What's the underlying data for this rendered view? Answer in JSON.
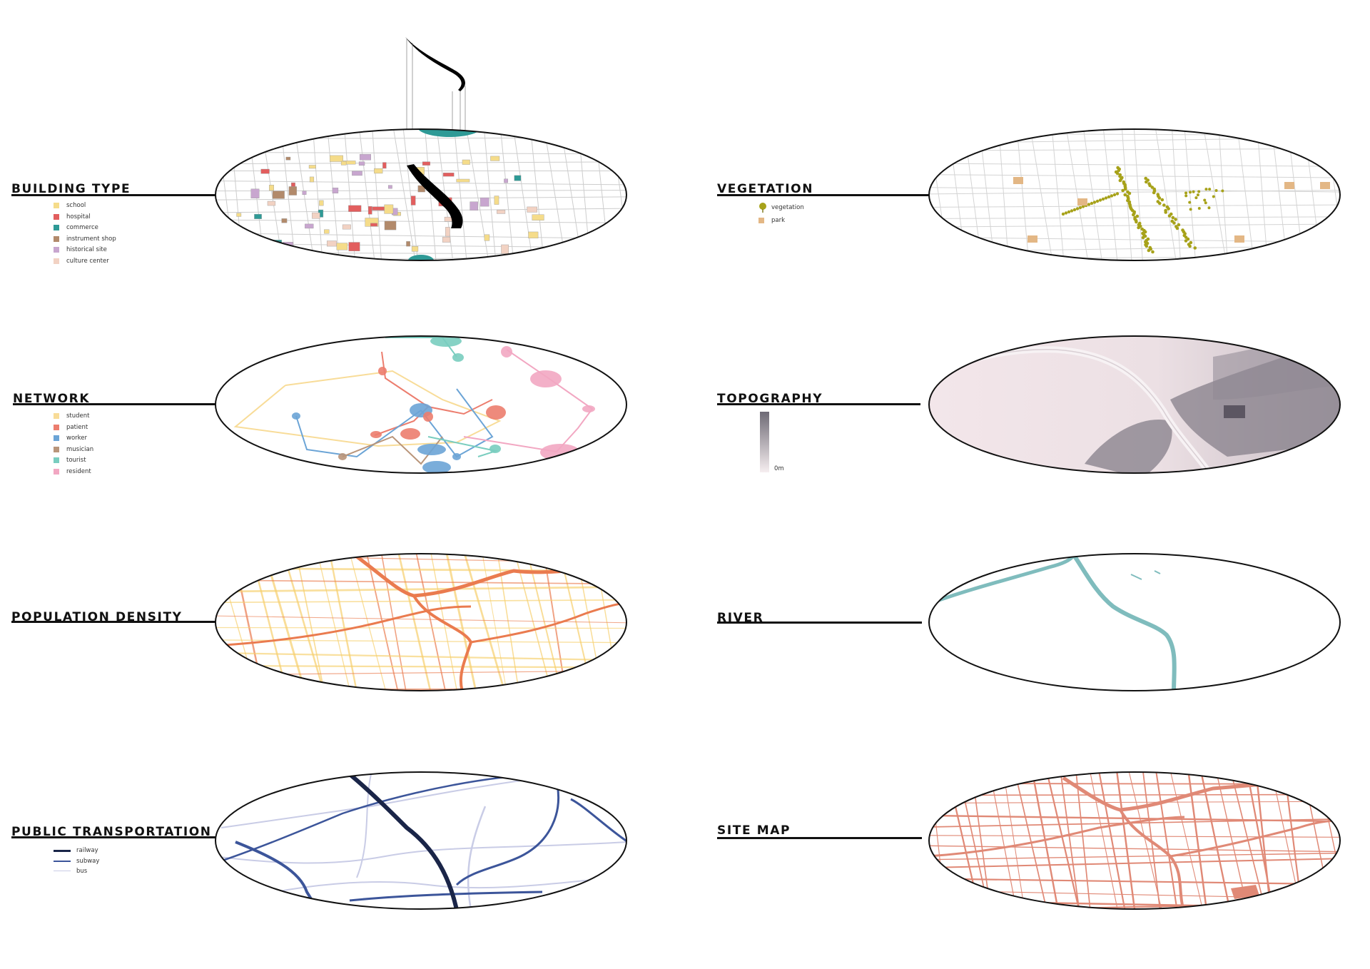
{
  "panels": [
    {
      "key": "building_type",
      "title": "BUILDING TYPE",
      "legend": [
        {
          "label": "school",
          "color": "#f5dc8a"
        },
        {
          "label": "hospital",
          "color": "#e25e5e"
        },
        {
          "label": "commerce",
          "color": "#2e9a96"
        },
        {
          "label": "instrument shop",
          "color": "#b28a6b"
        },
        {
          "label": "historical site",
          "color": "#c8a6cf"
        },
        {
          "label": "culture center",
          "color": "#f2d2c3"
        }
      ]
    },
    {
      "key": "vegetation",
      "title": "VEGETATION",
      "legend": [
        {
          "label": "vegetation",
          "color": "#a7a21a",
          "icon": "tree-icon"
        },
        {
          "label": "park",
          "color": "#e3b785"
        }
      ]
    },
    {
      "key": "network",
      "title": "NETWORK",
      "legend": [
        {
          "label": "student",
          "color": "#f8dc98"
        },
        {
          "label": "patient",
          "color": "#ec7d6e"
        },
        {
          "label": "worker",
          "color": "#6ba4d6"
        },
        {
          "label": "musician",
          "color": "#b9957a"
        },
        {
          "label": "tourist",
          "color": "#79cdbf"
        },
        {
          "label": "resident",
          "color": "#f2a7c2"
        }
      ]
    },
    {
      "key": "topography",
      "title": "TOPOGRAPHY",
      "legend": [
        {
          "label": "0m"
        }
      ]
    },
    {
      "key": "population_density",
      "title": "POPULATION DENSITY",
      "legend": []
    },
    {
      "key": "river",
      "title": "RIVER",
      "legend": []
    },
    {
      "key": "public_transportation",
      "title": "PUBLIC TRANSPORTATION",
      "legend": [
        {
          "label": "railway",
          "color": "#1a2548"
        },
        {
          "label": "subway",
          "color": "#3c559a"
        },
        {
          "label": "bus",
          "color": "#c9cce6"
        }
      ]
    },
    {
      "key": "site_map",
      "title": "SITE MAP",
      "legend": []
    }
  ],
  "colors": {
    "street_gray": "#c9c9c9",
    "density_warm": "#f6cf6c",
    "density_hot": "#ea7b4f",
    "river": "#7fbcbd",
    "site_roads": "#e08976",
    "topo_low": "#f3e8eb",
    "topo_high": "#726c78"
  }
}
